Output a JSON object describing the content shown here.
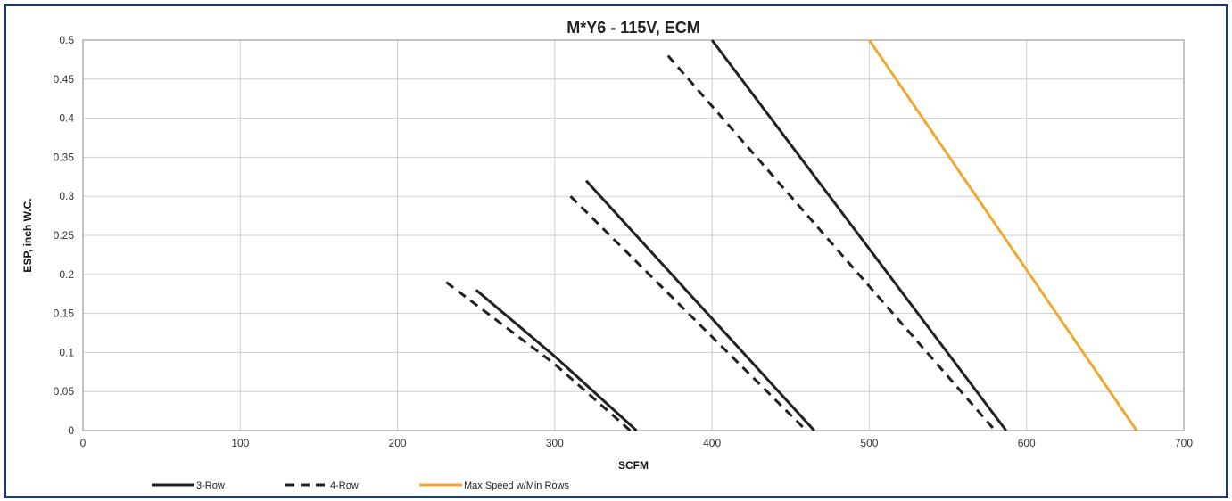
{
  "chart_data": {
    "type": "line",
    "title": "M*Y6 - 115V, ECM",
    "xlabel": "SCFM",
    "ylabel": "ESP, inch W.C.",
    "xlim": [
      0,
      700
    ],
    "ylim": [
      0,
      0.5
    ],
    "x_ticks": [
      0,
      100,
      200,
      300,
      400,
      500,
      600,
      700
    ],
    "y_ticks": [
      0,
      0.05,
      0.1,
      0.15,
      0.2,
      0.25,
      0.3,
      0.35,
      0.4,
      0.45,
      0.5
    ],
    "x_tick_labels": [
      "0",
      "100",
      "200",
      "300",
      "400",
      "500",
      "600",
      "700"
    ],
    "y_tick_labels": [
      "0",
      "0.05",
      "0.1",
      "0.15",
      "0.2",
      "0.25",
      "0.3",
      "0.35",
      "0.4",
      "0.45",
      "0.5"
    ],
    "grid": true,
    "legend_position": "bottom",
    "legend": [
      {
        "label": "3-Row",
        "color": "#222222",
        "dash": "solid"
      },
      {
        "label": "4-Row",
        "color": "#222222",
        "dash": "dashed"
      },
      {
        "label": "Max Speed w/Min Rows",
        "color": "#f0a830",
        "dash": "solid"
      }
    ],
    "series": [
      {
        "group": "3-Row",
        "style": "solid",
        "color": "#222222",
        "points": [
          [
            250,
            0.18
          ],
          [
            300,
            0.095
          ],
          [
            352,
            0.0
          ]
        ]
      },
      {
        "group": "4-Row",
        "style": "dashed",
        "color": "#222222",
        "points": [
          [
            231,
            0.19
          ],
          [
            300,
            0.085
          ],
          [
            348,
            0.0
          ]
        ]
      },
      {
        "group": "3-Row",
        "style": "solid",
        "color": "#222222",
        "points": [
          [
            320,
            0.32
          ],
          [
            465,
            0.0
          ]
        ]
      },
      {
        "group": "4-Row",
        "style": "dashed",
        "color": "#222222",
        "points": [
          [
            310,
            0.3
          ],
          [
            460,
            0.0
          ]
        ]
      },
      {
        "group": "3-Row",
        "style": "solid",
        "color": "#222222",
        "points": [
          [
            400,
            0.5
          ],
          [
            587,
            0.0
          ]
        ]
      },
      {
        "group": "4-Row",
        "style": "dashed",
        "color": "#222222",
        "points": [
          [
            372,
            0.48
          ],
          [
            580,
            0.0
          ]
        ]
      },
      {
        "group": "Max Speed w/Min Rows",
        "style": "solid",
        "color": "#f0a830",
        "points": [
          [
            500,
            0.5
          ],
          [
            670,
            0.0
          ]
        ]
      }
    ]
  }
}
